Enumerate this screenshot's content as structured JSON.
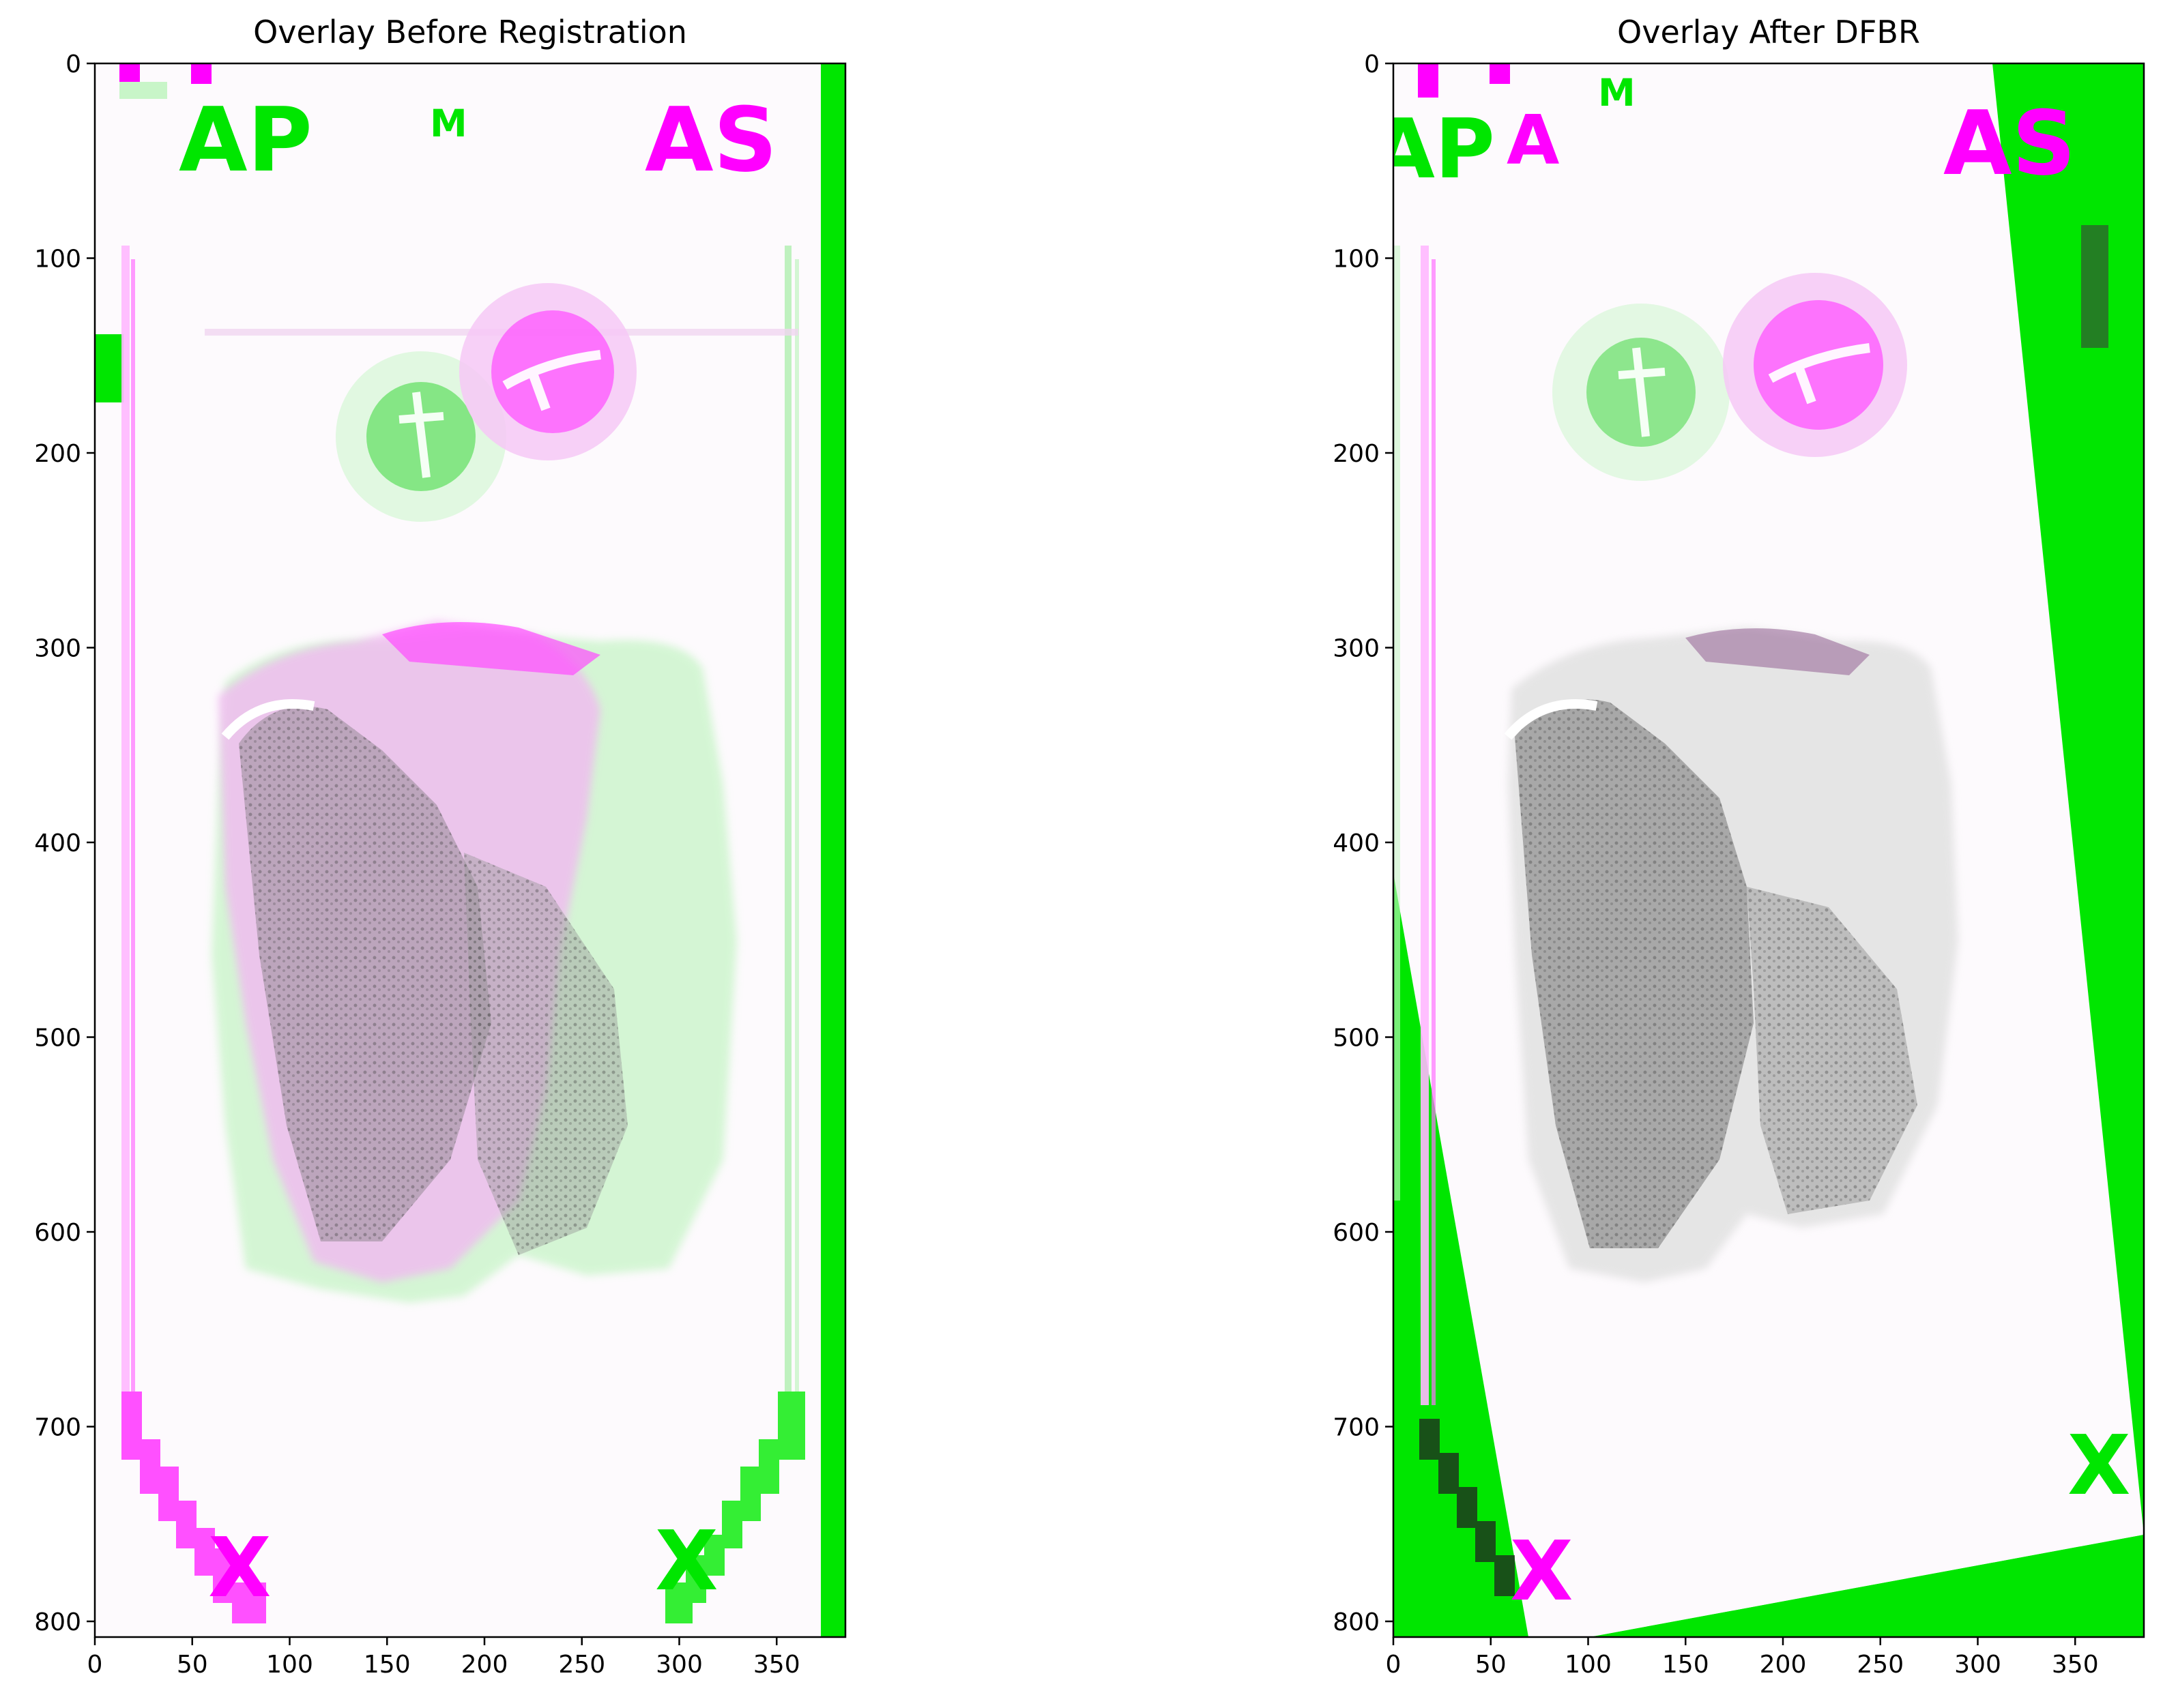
{
  "panels": [
    {
      "id": "before",
      "title": "Overlay Before Registration",
      "xticks": [
        "0",
        "50",
        "100",
        "150",
        "200",
        "250",
        "300",
        "350"
      ],
      "yticks": [
        "0",
        "100",
        "200",
        "300",
        "400",
        "500",
        "600",
        "700",
        "800"
      ],
      "slide_letters": [
        "AP",
        "M",
        "AS",
        "X",
        "X"
      ]
    },
    {
      "id": "after",
      "title": "Overlay After DFBR",
      "xticks": [
        "0",
        "50",
        "100",
        "150",
        "200",
        "250",
        "300",
        "350"
      ],
      "yticks": [
        "0",
        "100",
        "200",
        "300",
        "400",
        "500",
        "600",
        "700",
        "800"
      ],
      "slide_letters": [
        "AP",
        "A",
        "M",
        "AS",
        "X",
        "X"
      ]
    }
  ],
  "colors": {
    "moving_overlay": "#00e600",
    "fixed_overlay": "#ff00ff",
    "aligned_tissue": "#8c8c8c",
    "background": "#ffffff"
  }
}
